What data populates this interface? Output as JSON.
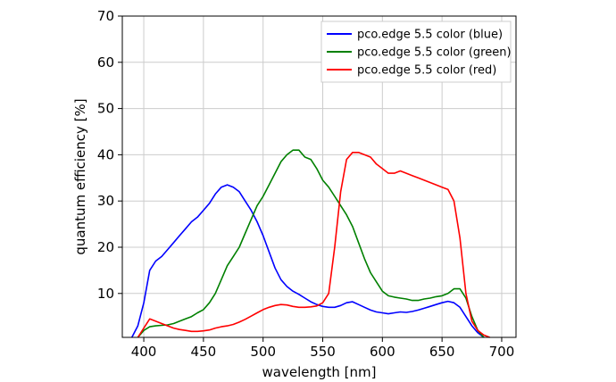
{
  "chart_data": {
    "type": "line",
    "xlabel": "wavelength [nm]",
    "ylabel": "quantum efficiency [%]",
    "xlim": [
      382,
      712
    ],
    "ylim": [
      0.5,
      70
    ],
    "xticks": [
      400,
      450,
      500,
      550,
      600,
      650,
      700
    ],
    "yticks": [
      10,
      20,
      30,
      40,
      50,
      60,
      70
    ],
    "grid": true,
    "legend_position": "top-right",
    "series": [
      {
        "name": "pco.edge 5.5 color (blue)",
        "color": "#0000ff",
        "points": [
          [
            390,
            0.5
          ],
          [
            395,
            3
          ],
          [
            400,
            8
          ],
          [
            405,
            15
          ],
          [
            410,
            17
          ],
          [
            415,
            18
          ],
          [
            420,
            19.5
          ],
          [
            425,
            21
          ],
          [
            430,
            22.5
          ],
          [
            435,
            24
          ],
          [
            440,
            25.5
          ],
          [
            445,
            26.5
          ],
          [
            450,
            28
          ],
          [
            455,
            29.5
          ],
          [
            460,
            31.5
          ],
          [
            465,
            33
          ],
          [
            470,
            33.5
          ],
          [
            475,
            33
          ],
          [
            480,
            32
          ],
          [
            485,
            30
          ],
          [
            490,
            28
          ],
          [
            495,
            25.5
          ],
          [
            500,
            22.5
          ],
          [
            505,
            19
          ],
          [
            510,
            15.5
          ],
          [
            515,
            13
          ],
          [
            520,
            11.5
          ],
          [
            525,
            10.5
          ],
          [
            530,
            9.8
          ],
          [
            535,
            9
          ],
          [
            540,
            8.2
          ],
          [
            545,
            7.6
          ],
          [
            550,
            7.2
          ],
          [
            555,
            7
          ],
          [
            560,
            7
          ],
          [
            565,
            7.4
          ],
          [
            570,
            8
          ],
          [
            575,
            8.2
          ],
          [
            580,
            7.6
          ],
          [
            585,
            7
          ],
          [
            590,
            6.4
          ],
          [
            595,
            6
          ],
          [
            600,
            5.8
          ],
          [
            605,
            5.6
          ],
          [
            610,
            5.8
          ],
          [
            615,
            6
          ],
          [
            620,
            5.9
          ],
          [
            625,
            6.1
          ],
          [
            630,
            6.4
          ],
          [
            635,
            6.8
          ],
          [
            640,
            7.2
          ],
          [
            645,
            7.6
          ],
          [
            650,
            8
          ],
          [
            655,
            8.3
          ],
          [
            660,
            8
          ],
          [
            665,
            7
          ],
          [
            670,
            5
          ],
          [
            675,
            3
          ],
          [
            680,
            1.5
          ],
          [
            685,
            0.5
          ]
        ]
      },
      {
        "name": "pco.edge 5.5 color (green)",
        "color": "#008000",
        "points": [
          [
            395,
            0.5
          ],
          [
            400,
            2
          ],
          [
            405,
            2.8
          ],
          [
            410,
            3
          ],
          [
            415,
            3.1
          ],
          [
            420,
            3.2
          ],
          [
            425,
            3.5
          ],
          [
            430,
            4
          ],
          [
            435,
            4.5
          ],
          [
            440,
            5
          ],
          [
            445,
            5.8
          ],
          [
            450,
            6.5
          ],
          [
            455,
            8
          ],
          [
            460,
            10
          ],
          [
            465,
            13
          ],
          [
            470,
            16
          ],
          [
            475,
            18
          ],
          [
            480,
            20
          ],
          [
            485,
            23
          ],
          [
            490,
            26
          ],
          [
            495,
            29
          ],
          [
            500,
            31
          ],
          [
            505,
            33.5
          ],
          [
            510,
            36
          ],
          [
            515,
            38.5
          ],
          [
            520,
            40
          ],
          [
            525,
            41
          ],
          [
            530,
            41
          ],
          [
            535,
            39.5
          ],
          [
            540,
            39
          ],
          [
            545,
            37
          ],
          [
            550,
            34.5
          ],
          [
            555,
            33
          ],
          [
            560,
            31
          ],
          [
            565,
            29
          ],
          [
            570,
            27
          ],
          [
            575,
            24.5
          ],
          [
            580,
            21
          ],
          [
            585,
            17.5
          ],
          [
            590,
            14.5
          ],
          [
            595,
            12.5
          ],
          [
            600,
            10.5
          ],
          [
            605,
            9.5
          ],
          [
            610,
            9.2
          ],
          [
            615,
            9
          ],
          [
            620,
            8.8
          ],
          [
            625,
            8.5
          ],
          [
            630,
            8.5
          ],
          [
            635,
            8.8
          ],
          [
            640,
            9
          ],
          [
            645,
            9.3
          ],
          [
            650,
            9.5
          ],
          [
            655,
            10
          ],
          [
            660,
            11
          ],
          [
            665,
            11
          ],
          [
            670,
            9
          ],
          [
            675,
            5
          ],
          [
            680,
            2
          ],
          [
            685,
            0.5
          ]
        ]
      },
      {
        "name": "pco.edge 5.5 color (red)",
        "color": "#ff0000",
        "points": [
          [
            395,
            0.5
          ],
          [
            400,
            2.5
          ],
          [
            405,
            4.5
          ],
          [
            410,
            4
          ],
          [
            415,
            3.5
          ],
          [
            420,
            3
          ],
          [
            425,
            2.5
          ],
          [
            430,
            2.2
          ],
          [
            435,
            2
          ],
          [
            440,
            1.8
          ],
          [
            445,
            1.8
          ],
          [
            450,
            1.9
          ],
          [
            455,
            2.1
          ],
          [
            460,
            2.5
          ],
          [
            465,
            2.8
          ],
          [
            470,
            3
          ],
          [
            475,
            3.3
          ],
          [
            480,
            3.8
          ],
          [
            485,
            4.4
          ],
          [
            490,
            5.1
          ],
          [
            495,
            5.8
          ],
          [
            500,
            6.5
          ],
          [
            505,
            7
          ],
          [
            510,
            7.4
          ],
          [
            515,
            7.6
          ],
          [
            520,
            7.5
          ],
          [
            525,
            7.2
          ],
          [
            530,
            7
          ],
          [
            535,
            7
          ],
          [
            540,
            7.1
          ],
          [
            545,
            7.3
          ],
          [
            550,
            8
          ],
          [
            555,
            10
          ],
          [
            560,
            20
          ],
          [
            565,
            32
          ],
          [
            570,
            39
          ],
          [
            575,
            40.5
          ],
          [
            580,
            40.5
          ],
          [
            585,
            40
          ],
          [
            590,
            39.5
          ],
          [
            595,
            38
          ],
          [
            600,
            37
          ],
          [
            605,
            36
          ],
          [
            610,
            36
          ],
          [
            615,
            36.5
          ],
          [
            620,
            36
          ],
          [
            625,
            35.5
          ],
          [
            630,
            35
          ],
          [
            635,
            34.5
          ],
          [
            640,
            34
          ],
          [
            645,
            33.5
          ],
          [
            650,
            33
          ],
          [
            655,
            32.5
          ],
          [
            660,
            30
          ],
          [
            665,
            22
          ],
          [
            670,
            10
          ],
          [
            675,
            4
          ],
          [
            680,
            2
          ],
          [
            685,
            1
          ],
          [
            690,
            0.5
          ]
        ]
      }
    ]
  }
}
